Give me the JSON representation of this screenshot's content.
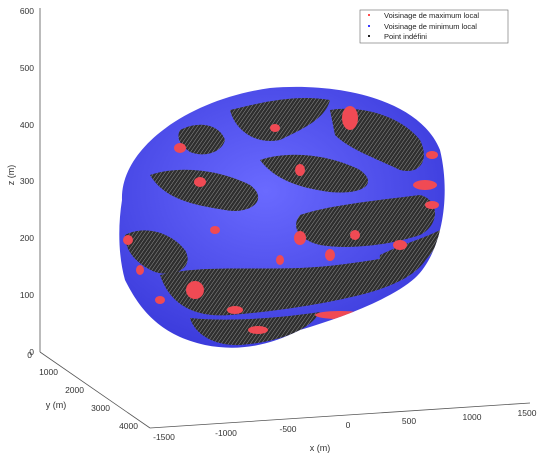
{
  "chart_data": {
    "type": "scatter",
    "title": "",
    "axes": {
      "x": {
        "label": "x (m)",
        "ticks": [
          "-1500",
          "-1000",
          "-500",
          "0",
          "500",
          "1000",
          "1500"
        ]
      },
      "y": {
        "label": "y (m)",
        "ticks": [
          "0",
          "1000",
          "2000",
          "3000",
          "4000"
        ]
      },
      "z": {
        "label": "z (m)",
        "ticks": [
          "0",
          "100",
          "200",
          "300",
          "400",
          "500",
          "600"
        ]
      }
    },
    "legend": {
      "placement": "top-right",
      "entries": [
        {
          "label": "Voisinage de maximum local",
          "color": "#ff4d4d"
        },
        {
          "label": "Voisinage de minimum local",
          "color": "#3a3aff"
        },
        {
          "label": "Point indéfini",
          "color": "#222222"
        }
      ]
    },
    "surface_colors": {
      "minimum": "#4b4bea",
      "maximum": "#f04a54",
      "undefined": "#2c2c2c"
    }
  }
}
